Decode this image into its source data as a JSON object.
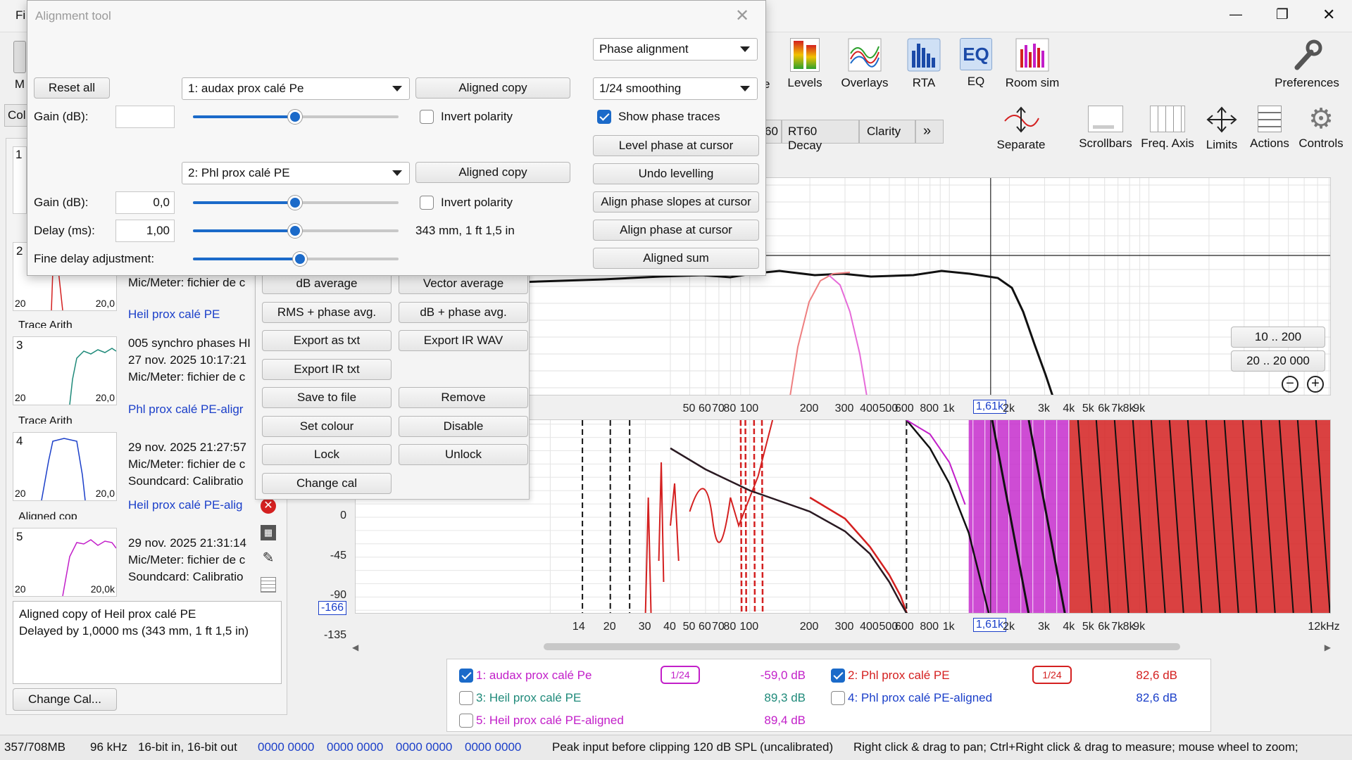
{
  "window": {
    "title_fragment": "Fi",
    "controls": {
      "minimize": "—",
      "maximize": "❐",
      "close": "✕"
    }
  },
  "toolbar": {
    "items": [
      {
        "label": "M",
        "icon": "mic-icon"
      },
      {
        "label": "Levels",
        "icon": "levels-icon"
      },
      {
        "label": "Overlays",
        "icon": "overlays-icon"
      },
      {
        "label": "RTA",
        "icon": "rta-icon"
      },
      {
        "label": "EQ",
        "icon": "eq-icon"
      },
      {
        "label": "Room sim",
        "icon": "room-sim-icon"
      },
      {
        "label": "Preferences",
        "icon": "wrench-icon"
      }
    ],
    "partial_letter": "e",
    "second_row": [
      {
        "label": "Separate",
        "icon": "separate-icon"
      },
      {
        "label": "Scrollbars",
        "icon": "scrollbars-icon"
      },
      {
        "label": "Freq. Axis",
        "icon": "freq-axis-icon"
      },
      {
        "label": "Limits",
        "icon": "limits-icon"
      },
      {
        "label": "Actions",
        "icon": "actions-icon"
      },
      {
        "label": "Controls",
        "icon": "gear-icon"
      }
    ],
    "tabs": [
      "60",
      "RT60 Decay",
      "Clarity",
      "»"
    ],
    "col_tab": "Col"
  },
  "alignment_dialog": {
    "title": "Alignment tool",
    "reset_all": "Reset all",
    "mode_select": "Phase alignment",
    "smoothing_select": "1/24 smoothing",
    "show_phase_traces": "Show phase traces",
    "buttons": {
      "level_phase": "Level phase at cursor",
      "undo_levelling": "Undo levelling",
      "align_slopes": "Align phase slopes at cursor",
      "align_phase": "Align phase at cursor",
      "aligned_sum": "Aligned sum"
    },
    "m1": {
      "select": "1: audax prox calé Pe",
      "gain_label": "Gain (dB):",
      "gain_value": "",
      "invert": "Invert polarity",
      "aligned_copy": "Aligned copy"
    },
    "m2": {
      "select": "2: Phl prox calé PE",
      "gain_label": "Gain (dB):",
      "gain_value": "0,0",
      "invert": "Invert polarity",
      "aligned_copy": "Aligned copy",
      "delay_label": "Delay (ms):",
      "delay_value": "1,00",
      "delay_info": "343 mm, 1 ft 1,5 in"
    },
    "fine_delay": "Fine delay adjustment:"
  },
  "actions_panel": {
    "buttons": [
      [
        "dB average",
        "Vector average"
      ],
      [
        "RMS + phase avg.",
        "dB + phase avg."
      ],
      [
        "Export as txt",
        "Export IR WAV"
      ],
      [
        "Export IR txt",
        ""
      ],
      [
        "Save to file",
        "Remove"
      ],
      [
        "Set colour",
        "Disable"
      ],
      [
        "Lock",
        "Unlock"
      ],
      [
        "Change cal",
        ""
      ]
    ]
  },
  "measurements": [
    {
      "num": "1",
      "line1": "",
      "line2": "",
      "line3": "",
      "name": ""
    },
    {
      "num": "2",
      "line1": "",
      "line2": "",
      "line3": "Mic/Meter: fichier de c",
      "name": "Heil prox calé PE"
    },
    {
      "num": "3",
      "line1": "005 synchro phases HI",
      "line2": "27 nov. 2025 10:17:21",
      "line3": "Mic/Meter: fichier de c",
      "name": "Phl prox calé PE-aligr"
    },
    {
      "num": "4",
      "line1": "29 nov. 2025 21:27:57",
      "line2": "Mic/Meter: fichier de c",
      "line3": "Soundcard: Calibratio",
      "name": "Heil prox calé PE-alig"
    },
    {
      "num": "5",
      "line1": "29 nov. 2025 21:31:14",
      "line2": "Mic/Meter: fichier de c",
      "line3": "Soundcard: Calibratio",
      "name": ""
    }
  ],
  "card_axis": {
    "left": "20",
    "right": "20,0k",
    "right_short": "20,0"
  },
  "trace_arith_cut": "Trace Arith",
  "aligned_cut": "Aligned cop",
  "notes": {
    "line1": "Aligned copy of Heil prox calé PE",
    "line2": "Delayed by 1,0000 ms (343 mm, 1 ft 1,5 in)"
  },
  "change_cal": "Change Cal...",
  "top_graph": {
    "range_buttons": [
      "10 .. 200",
      "20 .. 20 000"
    ],
    "x_ticks": [
      "50",
      "60",
      "70",
      "80",
      "100",
      "200",
      "300",
      "400",
      "500",
      "600",
      "800",
      "1k",
      "1,61k",
      "2k",
      "3k",
      "4k",
      "5k",
      "6k",
      "7k",
      "8k",
      "9k"
    ]
  },
  "phase_graph": {
    "y_ticks": [
      "0",
      "-45",
      "-90",
      "-135"
    ],
    "y_cursor": "-166",
    "x_ticks": [
      "14",
      "20",
      "30",
      "40",
      "50",
      "60",
      "70",
      "80",
      "100",
      "200",
      "300",
      "400",
      "500",
      "600",
      "800",
      "1k",
      "1,61k",
      "2k",
      "3k",
      "4k",
      "5k",
      "6k",
      "7k",
      "8k",
      "9k",
      "12kHz"
    ]
  },
  "legend": [
    {
      "checked": true,
      "label": "1: audax prox calé Pe",
      "smoothing": "1/24",
      "value": "-59,0 dB",
      "color": "#c21fc9"
    },
    {
      "checked": true,
      "label": "2: Phl prox calé PE",
      "smoothing": "1/24",
      "value": "82,6 dB",
      "color": "#d42020"
    },
    {
      "checked": false,
      "label": "3: Heil prox calé PE",
      "smoothing": "",
      "value": "89,3 dB",
      "color": "#1f8a7a"
    },
    {
      "checked": false,
      "label": "4: Phl prox calé PE-aligned",
      "smoothing": "",
      "value": "82,6 dB",
      "color": "#1b3fc9"
    },
    {
      "checked": false,
      "label": "5: Heil prox calé PE-aligned",
      "smoothing": "",
      "value": "89,4 dB",
      "color": "#c21fc9"
    }
  ],
  "status": {
    "memory": "357/708MB",
    "rate": "96 kHz",
    "bits": "16-bit in, 16-bit out",
    "levels": [
      "0000 0000",
      "0000 0000",
      "0000 0000",
      "0000 0000"
    ],
    "peak": "Peak input before clipping 120 dB SPL (uncalibrated)",
    "hint": "Right click & drag to pan; Ctrl+Right click & drag to measure; mouse wheel to zoom;"
  },
  "colors": {
    "accent": "#1b6ac9",
    "trace_red": "#d42020",
    "trace_magenta": "#c21fc9",
    "trace_black": "#111111",
    "trace_pink": "#ee7f80"
  }
}
